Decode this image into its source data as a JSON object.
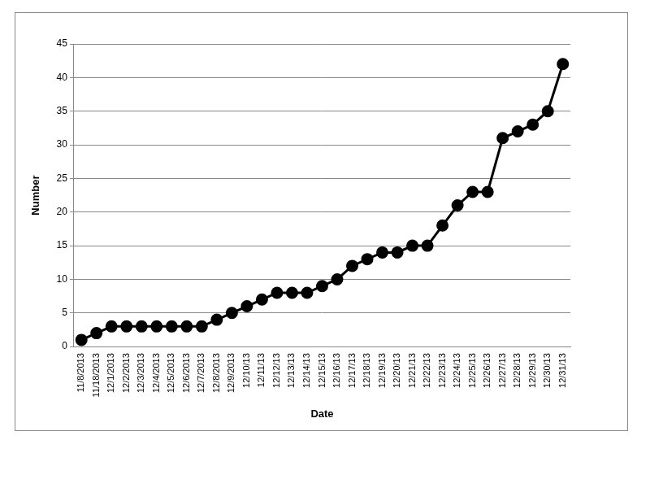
{
  "chart_data": {
    "type": "line",
    "x_label": "Date",
    "y_label": "Number",
    "categories": [
      "11/8/2013",
      "11/18/2013",
      "12/1/2013",
      "12/2/2013",
      "12/3/2013",
      "12/4/2013",
      "12/5/2013",
      "12/6/2013",
      "12/7/2013",
      "12/8/2013",
      "12/9/2013",
      "12/10/13",
      "12/11/13",
      "12/12/13",
      "12/13/13",
      "12/14/13",
      "12/15/13",
      "12/16/13",
      "12/17/13",
      "12/18/13",
      "12/19/13",
      "12/20/13",
      "12/21/13",
      "12/22/13",
      "12/23/13",
      "12/24/13",
      "12/25/13",
      "12/26/13",
      "12/27/13",
      "12/28/13",
      "12/29/13",
      "12/30/13",
      "12/31/13"
    ],
    "values": [
      1,
      2,
      3,
      3,
      3,
      3,
      3,
      3,
      3,
      4,
      5,
      6,
      7,
      8,
      8,
      8,
      9,
      10,
      12,
      13,
      14,
      14,
      15,
      15,
      18,
      21,
      23,
      23,
      31,
      32,
      33,
      35,
      42
    ],
    "color": "#000000",
    "marker": "circle",
    "line_style": "solid",
    "ylim": [
      0,
      45
    ],
    "yticks": [
      0,
      5,
      10,
      15,
      20,
      25,
      30,
      35,
      40,
      45
    ],
    "grid": true
  }
}
